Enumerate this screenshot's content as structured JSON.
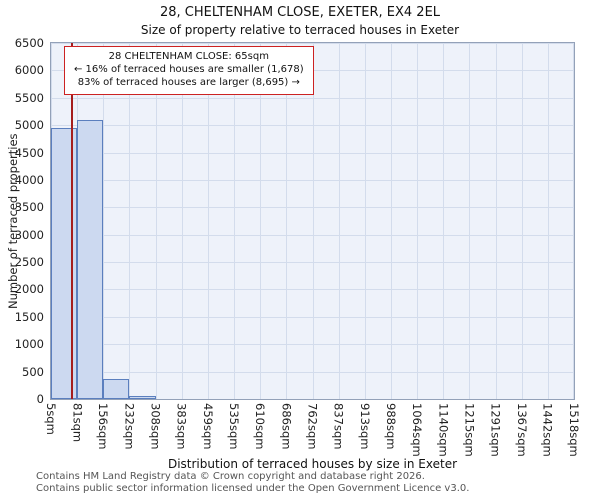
{
  "chart_data": {
    "type": "bar",
    "title": "28, CHELTENHAM CLOSE, EXETER, EX4 2EL",
    "subtitle": "Size of property relative to terraced houses in Exeter",
    "xlabel": "Distribution of terraced houses by size in Exeter",
    "ylabel": "Number of terraced properties",
    "ylim": [
      0,
      6500
    ],
    "ytick_step": 500,
    "bin_edges_sqm": [
      5,
      81,
      156,
      232,
      308,
      383,
      459,
      535,
      610,
      686,
      762,
      837,
      913,
      988,
      1064,
      1140,
      1215,
      1291,
      1367,
      1442,
      1518
    ],
    "x_tick_labels": [
      "5sqm",
      "81sqm",
      "156sqm",
      "232sqm",
      "308sqm",
      "383sqm",
      "459sqm",
      "535sqm",
      "610sqm",
      "686sqm",
      "762sqm",
      "837sqm",
      "913sqm",
      "988sqm",
      "1064sqm",
      "1140sqm",
      "1215sqm",
      "1291sqm",
      "1367sqm",
      "1442sqm",
      "1518sqm"
    ],
    "values": [
      4950,
      5100,
      370,
      55,
      0,
      0,
      0,
      0,
      0,
      0,
      0,
      0,
      0,
      0,
      0,
      0,
      0,
      0,
      0,
      0
    ],
    "marker_sqm": 65,
    "grid": true,
    "legend": false,
    "colors": {
      "bar_fill": "#ccd9f0",
      "bar_border": "#5b7fbe",
      "marker_line": "#a51d1d",
      "annotation_border": "#cc2222",
      "plot_bg": "#eef2fa",
      "grid": "#d3dcec"
    }
  },
  "annotation": {
    "line1": "28 CHELTENHAM CLOSE: 65sqm",
    "line2": "← 16% of terraced houses are smaller (1,678)",
    "line3": "83% of terraced houses are larger (8,695) →"
  },
  "footer": {
    "line1": "Contains HM Land Registry data © Crown copyright and database right 2026.",
    "line2": "Contains public sector information licensed under the Open Government Licence v3.0."
  }
}
